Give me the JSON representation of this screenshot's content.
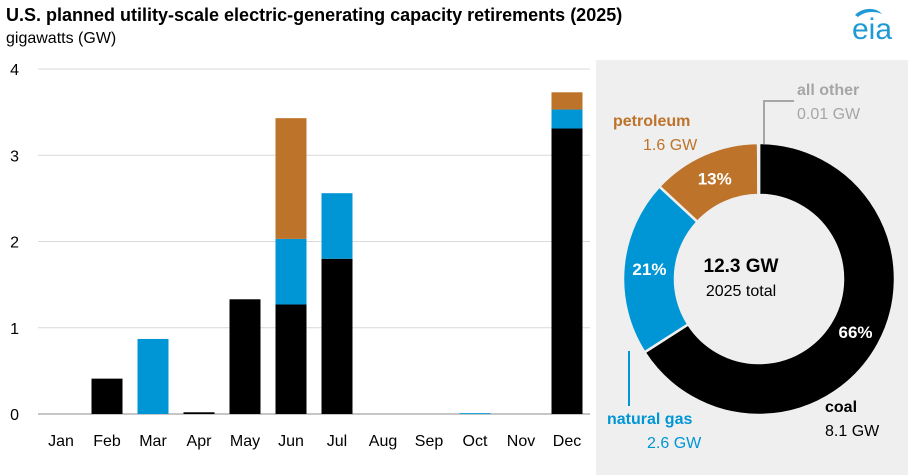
{
  "header": {
    "title": "U.S. planned utility-scale electric-generating capacity retirements (2025)",
    "subtitle": "gigawatts (GW)",
    "logo_text": "eia"
  },
  "colors": {
    "coal": "#000000",
    "natural_gas": "#0096d6",
    "petroleum": "#bd732a",
    "all_other": "#a6a6a6",
    "logo_blue": "#1f9ad6"
  },
  "chart_data": [
    {
      "type": "bar",
      "stacked": true,
      "title": "U.S. planned utility-scale electric-generating capacity retirements (2025)",
      "ylabel": "gigawatts (GW)",
      "xlabel": "",
      "ylim": [
        0,
        4
      ],
      "yticks": [
        0,
        1,
        2,
        3,
        4
      ],
      "categories": [
        "Jan",
        "Feb",
        "Mar",
        "Apr",
        "May",
        "Jun",
        "Jul",
        "Aug",
        "Sep",
        "Oct",
        "Nov",
        "Dec"
      ],
      "series": [
        {
          "name": "coal",
          "color": "#000000",
          "values": [
            0,
            0.41,
            0,
            0.02,
            1.33,
            1.27,
            1.8,
            0,
            0,
            0,
            0,
            3.31
          ]
        },
        {
          "name": "natural gas",
          "color": "#0096d6",
          "values": [
            0,
            0,
            0.87,
            0,
            0,
            0.76,
            0.76,
            0,
            0,
            0.01,
            0,
            0.22
          ]
        },
        {
          "name": "petroleum",
          "color": "#bd732a",
          "values": [
            0,
            0,
            0,
            0,
            0,
            1.4,
            0,
            0,
            0,
            0,
            0,
            0.2
          ]
        }
      ],
      "grid": true
    },
    {
      "type": "pie",
      "donut": true,
      "center_value": "12.3 GW",
      "center_label": "2025 total",
      "slices": [
        {
          "name": "coal",
          "value_label": "8.1 GW",
          "percent": 66,
          "percent_label": "66%",
          "color": "#000000"
        },
        {
          "name": "natural gas",
          "value_label": "2.6 GW",
          "percent": 21,
          "percent_label": "21%",
          "color": "#0096d6"
        },
        {
          "name": "petroleum",
          "value_label": "1.6 GW",
          "percent": 13,
          "percent_label": "13%",
          "color": "#bd732a"
        },
        {
          "name": "all other",
          "value_label": "0.01 GW",
          "percent": 0.1,
          "percent_label": "",
          "color": "#a6a6a6"
        }
      ]
    }
  ]
}
